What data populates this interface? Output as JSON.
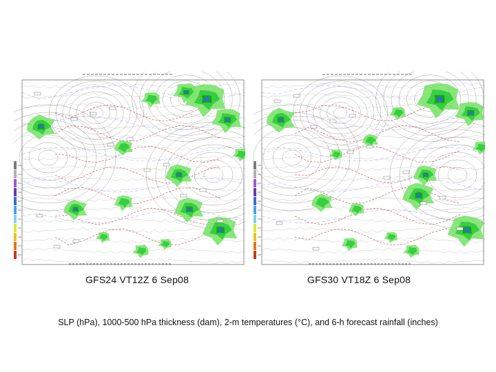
{
  "panels": [
    {
      "caption": "GFS24 VT12Z 6 Sep08"
    },
    {
      "caption": "GFS30 VT18Z 6 Sep08"
    }
  ],
  "bottom_caption": "SLP (hPa), 1000-500 hPa thickness (dam), 2-m temperatures (°C), and 6-h forecast rainfall (inches)",
  "colors": {
    "rain_light": "#7be36b",
    "rain_mid": "#2ecc3a",
    "rain_heavy": "#1a9e2a",
    "rain_core": "#2f6fd6",
    "isobar": "#6b6b6b",
    "temperature": "#b83a3a",
    "thickness": "#4a7bd0"
  },
  "colorbar": [
    "#7a7a7a",
    "#b0b0b0",
    "#9c5bd0",
    "#6a3aa8",
    "#3a6ad8",
    "#4aa0e8",
    "#7fd0f0",
    "#d8e830",
    "#f0c020",
    "#e07818",
    "#c83a18"
  ]
}
